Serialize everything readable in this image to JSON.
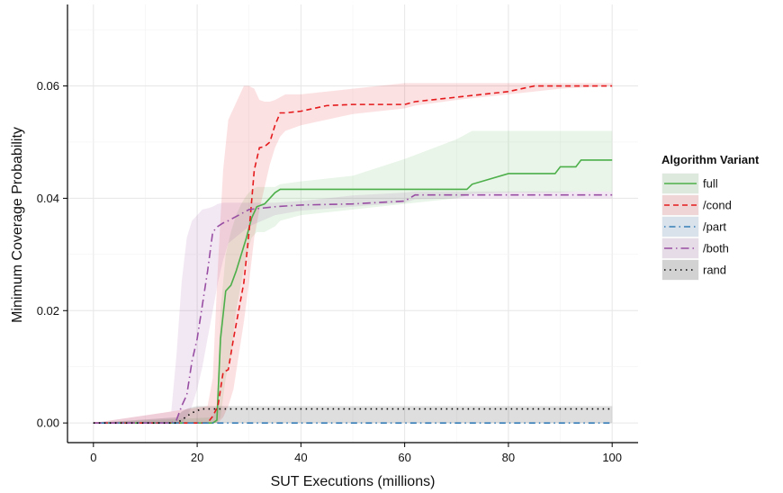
{
  "chart_data": {
    "type": "line",
    "title": "",
    "xlabel": "SUT Executions (millions)",
    "ylabel": "Minimum Coverage Probability",
    "xlim": [
      -5,
      105
    ],
    "ylim": [
      -0.0035,
      0.0745
    ],
    "x_ticks": [
      0,
      20,
      40,
      60,
      80,
      100
    ],
    "y_ticks": [
      0.0,
      0.02,
      0.04,
      0.06
    ],
    "x_tick_labels": [
      "0",
      "20",
      "40",
      "60",
      "80",
      "100"
    ],
    "y_tick_labels": [
      "0.00",
      "0.02",
      "0.04",
      "0.06"
    ],
    "grid": true,
    "legend": {
      "title": "Algorithm Variant",
      "placement": "right"
    },
    "series": [
      {
        "name": "full",
        "color": "#4daf4a",
        "dash": "solid",
        "x": [
          0,
          23,
          23.8,
          24.5,
          25.5,
          26.5,
          27.5,
          28.5,
          29.5,
          30.5,
          31.5,
          33,
          34,
          35,
          36,
          40,
          50,
          60,
          70,
          72,
          73,
          80,
          89,
          90,
          93,
          94,
          100
        ],
        "y": [
          0,
          0,
          0.0005,
          0.015,
          0.0235,
          0.0245,
          0.027,
          0.03,
          0.033,
          0.0365,
          0.0385,
          0.039,
          0.04,
          0.041,
          0.0416,
          0.0416,
          0.0416,
          0.0416,
          0.0416,
          0.0416,
          0.0425,
          0.0444,
          0.0444,
          0.0456,
          0.0456,
          0.0468,
          0.0468
        ],
        "lower": [
          0,
          0,
          0,
          0.001,
          0.008,
          0.012,
          0.02,
          0.025,
          0.03,
          0.033,
          0.034,
          0.034,
          0.0345,
          0.035,
          0.036,
          0.037,
          0.038,
          0.039,
          0.04,
          0.0405,
          0.0408,
          0.041,
          0.041,
          0.041,
          0.0412,
          0.0412,
          0.0412
        ],
        "upper": [
          0,
          0.001,
          0.003,
          0.02,
          0.03,
          0.034,
          0.037,
          0.039,
          0.0405,
          0.0415,
          0.042,
          0.042,
          0.042,
          0.042,
          0.0425,
          0.043,
          0.044,
          0.047,
          0.0505,
          0.0515,
          0.052,
          0.052,
          0.052,
          0.052,
          0.052,
          0.052,
          0.052
        ]
      },
      {
        "name": "/cond",
        "color": "#e41a1c",
        "dash": "dashed",
        "x": [
          0,
          22,
          23,
          24,
          25,
          26,
          27,
          28,
          29,
          30,
          31,
          32,
          33,
          34,
          35,
          36,
          37,
          40,
          45,
          50,
          55,
          60,
          62,
          70,
          80,
          85,
          90,
          100
        ],
        "y": [
          0,
          0,
          0.0012,
          0.003,
          0.009,
          0.0095,
          0.015,
          0.02,
          0.025,
          0.034,
          0.045,
          0.049,
          0.0492,
          0.05,
          0.053,
          0.0552,
          0.0552,
          0.0555,
          0.0565,
          0.0567,
          0.0567,
          0.0567,
          0.0572,
          0.058,
          0.059,
          0.06,
          0.06,
          0.06
        ],
        "lower": [
          0,
          0,
          0,
          0,
          0.001,
          0.003,
          0.006,
          0.012,
          0.018,
          0.025,
          0.033,
          0.038,
          0.042,
          0.046,
          0.049,
          0.051,
          0.052,
          0.053,
          0.054,
          0.055,
          0.0555,
          0.056,
          0.0565,
          0.0575,
          0.0585,
          0.059,
          0.0595,
          0.06
        ],
        "upper": [
          0,
          0.003,
          0.008,
          0.028,
          0.045,
          0.054,
          0.056,
          0.058,
          0.06,
          0.06,
          0.0595,
          0.0575,
          0.0572,
          0.0572,
          0.0575,
          0.058,
          0.0585,
          0.0585,
          0.059,
          0.0595,
          0.06,
          0.0605,
          0.0605,
          0.0605,
          0.0605,
          0.0605,
          0.0605,
          0.0605
        ]
      },
      {
        "name": "/part",
        "color": "#377eb8",
        "dash": "dotdash",
        "x": [
          0,
          100
        ],
        "y": [
          0,
          0
        ],
        "lower": [
          0,
          0
        ],
        "upper": [
          0,
          0
        ]
      },
      {
        "name": "/both",
        "color": "#984ea3",
        "dash": "longdash-dot",
        "x": [
          0,
          15,
          16,
          17,
          18,
          19,
          20,
          21,
          22,
          23,
          24,
          25,
          26,
          30,
          35,
          40,
          50,
          60,
          62,
          70,
          80,
          90,
          100
        ],
        "y": [
          0,
          0,
          0.0005,
          0.003,
          0.005,
          0.011,
          0.015,
          0.021,
          0.027,
          0.034,
          0.035,
          0.0356,
          0.036,
          0.038,
          0.0385,
          0.0388,
          0.039,
          0.0395,
          0.0406,
          0.0406,
          0.0406,
          0.0406,
          0.0406
        ],
        "lower": [
          0,
          0,
          0,
          0,
          0.001,
          0.003,
          0.006,
          0.01,
          0.015,
          0.02,
          0.025,
          0.029,
          0.032,
          0.035,
          0.037,
          0.0378,
          0.0385,
          0.0392,
          0.0398,
          0.04,
          0.04,
          0.04,
          0.04
        ],
        "upper": [
          0,
          0.002,
          0.012,
          0.025,
          0.033,
          0.036,
          0.037,
          0.038,
          0.0382,
          0.0385,
          0.039,
          0.0392,
          0.0392,
          0.0392,
          0.0392,
          0.0395,
          0.0405,
          0.041,
          0.0412,
          0.0412,
          0.0412,
          0.0412,
          0.0412
        ]
      },
      {
        "name": "rand",
        "color": "#000000",
        "dash": "dotted",
        "x": [
          0,
          16,
          17,
          18,
          19,
          20,
          21,
          100
        ],
        "y": [
          0,
          0,
          0.0005,
          0.0012,
          0.0018,
          0.0022,
          0.0025,
          0.0025
        ],
        "lower": [
          0,
          0,
          0,
          0,
          0,
          0,
          0,
          0
        ],
        "upper": [
          0,
          0.001,
          0.002,
          0.0025,
          0.0028,
          0.003,
          0.003,
          0.003
        ]
      }
    ]
  }
}
